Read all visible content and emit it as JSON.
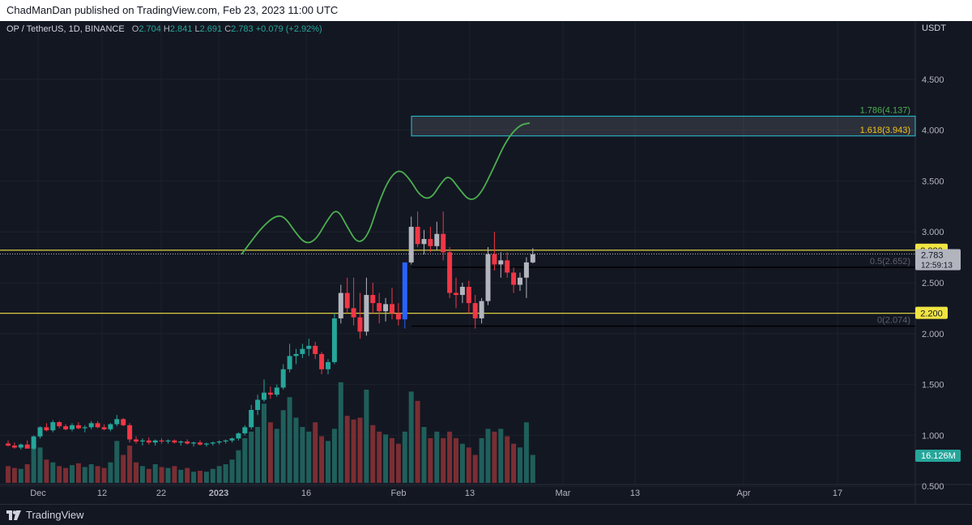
{
  "header": {
    "text": "ChadManDan published on TradingView.com, Feb 23, 2023 11:00 UTC"
  },
  "legend": {
    "symbol": "OP / TetherUS, 1D, BINANCE",
    "open_label": "O",
    "open": "2.704",
    "high_label": "H",
    "high": "2.841",
    "low_label": "L",
    "low": "2.691",
    "close_label": "C",
    "close": "2.783",
    "change": "+0.079 (+2.92%)"
  },
  "footer": {
    "brand": "TradingView"
  },
  "chart_data": {
    "type": "candlestick",
    "currency_label": "USDT",
    "y_ticks": [
      "4.500",
      "4.000",
      "3.500",
      "3.000",
      "2.500",
      "2.000",
      "1.500",
      "1.000",
      "0.500"
    ],
    "x_ticks": [
      "Dec",
      "12",
      "22",
      "2023",
      "16",
      "Feb",
      "13",
      "Mar",
      "13",
      "Apr",
      "17"
    ],
    "horizontal_levels": [
      {
        "label": "2.820",
        "value": 2.82,
        "color": "#f0e442"
      },
      {
        "label": "2.200",
        "value": 2.2,
        "color": "#f0e442"
      }
    ],
    "current_price": {
      "label": "2.783",
      "countdown": "12:59:13",
      "value": 2.783
    },
    "volume_label": "16.126M",
    "fib_levels": [
      {
        "label": "1.786(4.137)",
        "value": 4.137,
        "color": "#4caf50"
      },
      {
        "label": "1.618(3.943)",
        "value": 3.943,
        "color": "#f0c419"
      },
      {
        "label": "0.5(2.652)",
        "value": 2.652,
        "color": "#131722"
      },
      {
        "label": "0(2.074)",
        "value": 2.074,
        "color": "#131722"
      }
    ],
    "target_box": {
      "low": 3.943,
      "high": 4.137
    },
    "candles": [
      [
        0.92,
        0.95,
        0.89,
        0.9
      ],
      [
        0.9,
        0.93,
        0.87,
        0.88
      ],
      [
        0.88,
        0.92,
        0.86,
        0.91
      ],
      [
        0.91,
        0.95,
        0.89,
        0.87
      ],
      [
        0.87,
        1.0,
        0.86,
        0.99
      ],
      [
        0.99,
        1.09,
        0.97,
        1.08
      ],
      [
        1.08,
        1.12,
        1.04,
        1.05
      ],
      [
        1.05,
        1.15,
        1.03,
        1.13
      ],
      [
        1.13,
        1.14,
        1.07,
        1.09
      ],
      [
        1.09,
        1.11,
        1.05,
        1.06
      ],
      [
        1.06,
        1.12,
        1.04,
        1.1
      ],
      [
        1.1,
        1.13,
        1.06,
        1.07
      ],
      [
        1.07,
        1.1,
        1.03,
        1.08
      ],
      [
        1.08,
        1.14,
        1.06,
        1.12
      ],
      [
        1.12,
        1.14,
        1.07,
        1.08
      ],
      [
        1.08,
        1.11,
        1.05,
        1.06
      ],
      [
        1.06,
        1.12,
        1.04,
        1.11
      ],
      [
        1.11,
        1.2,
        1.09,
        1.16
      ],
      [
        1.16,
        1.17,
        1.09,
        1.1
      ],
      [
        1.1,
        1.12,
        0.93,
        0.96
      ],
      [
        0.96,
        0.99,
        0.92,
        0.94
      ],
      [
        0.94,
        0.97,
        0.9,
        0.95
      ],
      [
        0.95,
        0.98,
        0.91,
        0.93
      ],
      [
        0.93,
        0.96,
        0.9,
        0.95
      ],
      [
        0.95,
        0.97,
        0.92,
        0.94
      ],
      [
        0.94,
        0.96,
        0.92,
        0.95
      ],
      [
        0.95,
        0.96,
        0.92,
        0.93
      ],
      [
        0.93,
        0.95,
        0.9,
        0.94
      ],
      [
        0.94,
        0.96,
        0.91,
        0.92
      ],
      [
        0.92,
        0.94,
        0.89,
        0.93
      ],
      [
        0.93,
        0.95,
        0.9,
        0.91
      ],
      [
        0.91,
        0.93,
        0.89,
        0.92
      ],
      [
        0.92,
        0.94,
        0.9,
        0.93
      ],
      [
        0.93,
        0.95,
        0.91,
        0.94
      ],
      [
        0.94,
        0.96,
        0.92,
        0.95
      ],
      [
        0.95,
        0.98,
        0.93,
        0.97
      ],
      [
        0.97,
        1.03,
        0.95,
        1.02
      ],
      [
        1.02,
        1.1,
        1.0,
        1.08
      ],
      [
        1.08,
        1.3,
        1.06,
        1.25
      ],
      [
        1.25,
        1.4,
        1.2,
        1.35
      ],
      [
        1.35,
        1.55,
        1.33,
        1.42
      ],
      [
        1.42,
        1.48,
        1.36,
        1.4
      ],
      [
        1.4,
        1.5,
        1.38,
        1.47
      ],
      [
        1.47,
        1.7,
        1.45,
        1.65
      ],
      [
        1.65,
        1.9,
        1.62,
        1.78
      ],
      [
        1.78,
        1.85,
        1.7,
        1.8
      ],
      [
        1.8,
        1.9,
        1.76,
        1.85
      ],
      [
        1.85,
        1.95,
        1.78,
        1.88
      ],
      [
        1.88,
        1.92,
        1.75,
        1.8
      ],
      [
        1.8,
        1.82,
        1.6,
        1.65
      ],
      [
        1.65,
        1.75,
        1.6,
        1.72
      ],
      [
        1.72,
        2.2,
        1.7,
        2.15
      ],
      [
        2.15,
        2.48,
        2.1,
        2.4
      ],
      [
        2.4,
        2.55,
        2.2,
        2.25
      ],
      [
        2.25,
        2.55,
        2.08,
        2.16
      ],
      [
        2.16,
        2.4,
        1.95,
        2.02
      ],
      [
        2.02,
        2.55,
        1.98,
        2.38
      ],
      [
        2.38,
        2.5,
        2.2,
        2.3
      ],
      [
        2.3,
        2.4,
        2.1,
        2.22
      ],
      [
        2.22,
        2.35,
        2.12,
        2.29
      ],
      [
        2.29,
        2.45,
        2.14,
        2.2
      ],
      [
        2.2,
        2.3,
        2.08,
        2.14
      ],
      [
        2.14,
        2.7,
        2.05,
        2.7
      ],
      [
        2.7,
        3.15,
        2.68,
        3.05
      ],
      [
        3.05,
        3.2,
        2.85,
        2.88
      ],
      [
        2.88,
        3.02,
        2.78,
        2.93
      ],
      [
        2.93,
        3.05,
        2.8,
        2.86
      ],
      [
        2.86,
        3.1,
        2.82,
        2.98
      ],
      [
        2.98,
        3.2,
        2.72,
        2.8
      ],
      [
        2.8,
        2.85,
        2.35,
        2.4
      ],
      [
        2.4,
        2.55,
        2.25,
        2.38
      ],
      [
        2.38,
        2.5,
        2.3,
        2.46
      ],
      [
        2.46,
        2.52,
        2.2,
        2.3
      ],
      [
        2.3,
        2.38,
        2.05,
        2.15
      ],
      [
        2.15,
        2.35,
        2.1,
        2.32
      ],
      [
        2.32,
        2.85,
        2.28,
        2.78
      ],
      [
        2.78,
        3.0,
        2.62,
        2.68
      ],
      [
        2.68,
        2.8,
        2.55,
        2.72
      ],
      [
        2.72,
        2.8,
        2.55,
        2.6
      ],
      [
        2.6,
        2.65,
        2.4,
        2.48
      ],
      [
        2.48,
        2.6,
        2.42,
        2.55
      ],
      [
        2.55,
        2.75,
        2.35,
        2.7
      ],
      [
        2.7,
        2.84,
        2.69,
        2.78
      ]
    ],
    "volume": [
      0.18,
      0.16,
      0.15,
      0.2,
      0.42,
      0.38,
      0.25,
      0.22,
      0.18,
      0.16,
      0.19,
      0.21,
      0.17,
      0.2,
      0.18,
      0.16,
      0.22,
      0.45,
      0.3,
      0.4,
      0.22,
      0.18,
      0.15,
      0.2,
      0.17,
      0.16,
      0.18,
      0.14,
      0.16,
      0.12,
      0.13,
      0.12,
      0.15,
      0.18,
      0.2,
      0.25,
      0.35,
      0.48,
      0.55,
      0.6,
      0.85,
      0.65,
      0.58,
      0.78,
      0.92,
      0.7,
      0.6,
      0.55,
      0.65,
      0.5,
      0.45,
      0.58,
      1.08,
      0.72,
      0.68,
      0.7,
      1.0,
      0.62,
      0.55,
      0.52,
      0.48,
      0.42,
      0.55,
      0.98,
      0.88,
      0.6,
      0.48,
      0.55,
      0.48,
      0.55,
      0.48,
      0.42,
      0.38,
      0.3,
      0.48,
      0.58,
      0.55,
      0.58,
      0.5,
      0.42,
      0.38,
      0.65,
      0.3
    ],
    "projection": [
      [
        2.79,
        2.78
      ],
      [
        2.86,
        2.9
      ],
      [
        2.95,
        3.05
      ],
      [
        3.05,
        3.16
      ],
      [
        3.12,
        3.15
      ],
      [
        3.2,
        3.0
      ],
      [
        3.28,
        2.88
      ],
      [
        3.36,
        2.92
      ],
      [
        3.44,
        3.1
      ],
      [
        3.52,
        3.24
      ],
      [
        3.6,
        3.05
      ],
      [
        3.68,
        2.88
      ],
      [
        3.76,
        2.96
      ],
      [
        3.84,
        3.28
      ],
      [
        3.92,
        3.52
      ],
      [
        4.0,
        3.62
      ],
      [
        4.08,
        3.52
      ],
      [
        4.16,
        3.35
      ],
      [
        4.24,
        3.32
      ],
      [
        4.32,
        3.48
      ],
      [
        4.38,
        3.56
      ],
      [
        4.46,
        3.42
      ],
      [
        4.54,
        3.3
      ],
      [
        4.62,
        3.36
      ],
      [
        4.72,
        3.62
      ],
      [
        4.82,
        3.9
      ],
      [
        4.92,
        4.05
      ],
      [
        5.0,
        4.07
      ]
    ]
  }
}
